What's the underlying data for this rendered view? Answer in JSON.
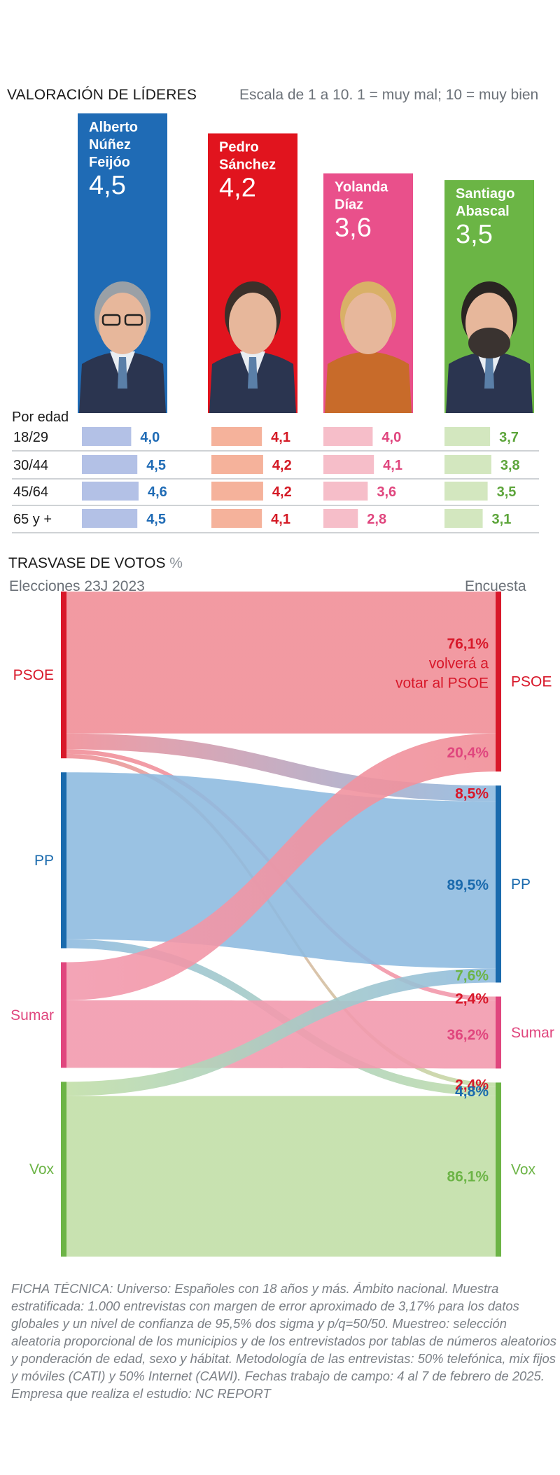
{
  "leaders_section": {
    "title": "VALORACIÓN DE LÍDERES",
    "scale_note": "Escala de 1 a 10. 1 = muy mal; 10 = muy bien",
    "age_label": "Por edad"
  },
  "transfer_section": {
    "title": "TRASVASE DE VOTOS",
    "unit": "%",
    "left_label": "Elecciones 23J 2023",
    "right_label": "Encuesta"
  },
  "ficha": "FICHA TÉCNICA: Universo: Españoles con 18 años y más. Ámbito nacional. Muestra estratificada: 1.000 entrevistas con margen de error aproximado de 3,17% para los datos globales y un nivel de confianza de 95,5% dos sigma y p/q=50/50. Muestreo: selección aleatoria proporcional de los municipios y de los entrevistados por tablas de números aleatorios y ponderación de edad, sexo y hábitat. Metodología de las entrevistas: 50% telefónica, mix fijos y móviles (CATI) y 50% Internet (CAWI). Fechas trabajo de campo: 4 al 7 de febrero de 2025. Empresa que realiza el estudio: NC REPORT",
  "chart_data": [
    {
      "type": "bar",
      "title": "VALORACIÓN DE LÍDERES",
      "subtitle": "Escala de 1 a 10. 1 = muy mal; 10 = muy bien",
      "categories": [
        "Alberto Núñez Feijóo",
        "Pedro Sánchez",
        "Yolanda Díaz",
        "Santiago Abascal"
      ],
      "name_lines": [
        [
          "Alberto",
          "Núñez",
          "Feijóo"
        ],
        [
          "Pedro",
          "Sánchez"
        ],
        [
          "Yolanda",
          "Díaz"
        ],
        [
          "Santiago",
          "Abascal"
        ]
      ],
      "values": [
        4.5,
        4.2,
        3.6,
        3.5
      ],
      "value_labels": [
        "4,5",
        "4,2",
        "3,6",
        "3,5"
      ],
      "colors": [
        "#1f6bb5",
        "#e1141e",
        "#e9508b",
        "#6bb545"
      ],
      "light_colors": [
        "#b3c1e6",
        "#f5b29b",
        "#f6bec9",
        "#d3e7bf"
      ],
      "text_colors": [
        "#1f6bb5",
        "#d41a25",
        "#e0467e",
        "#5da53b"
      ],
      "ylim": [
        0,
        10
      ]
    },
    {
      "type": "bar",
      "title": "Por edad",
      "age_groups": [
        "18/29",
        "30/44",
        "45/64",
        "65 y +"
      ],
      "series": [
        {
          "name": "Alberto Núñez Feijóo",
          "values": [
            4.0,
            4.5,
            4.6,
            4.5
          ],
          "labels": [
            "4,0",
            "4,5",
            "4,6",
            "4,5"
          ]
        },
        {
          "name": "Pedro Sánchez",
          "values": [
            4.1,
            4.2,
            4.2,
            4.1
          ],
          "labels": [
            "4,1",
            "4,2",
            "4,2",
            "4,1"
          ]
        },
        {
          "name": "Yolanda Díaz",
          "values": [
            4.0,
            4.1,
            3.6,
            2.8
          ],
          "labels": [
            "4,0",
            "4,1",
            "3,6",
            "2,8"
          ]
        },
        {
          "name": "Santiago Abascal",
          "values": [
            3.7,
            3.8,
            3.5,
            3.1
          ],
          "labels": [
            "3,7",
            "3,8",
            "3,5",
            "3,1"
          ]
        }
      ]
    },
    {
      "type": "sankey",
      "title": "TRASVASE DE VOTOS",
      "unit": "%",
      "left_nodes": [
        "PSOE",
        "PP",
        "Sumar",
        "Vox"
      ],
      "right_nodes": [
        "PSOE",
        "PP",
        "Sumar",
        "Vox"
      ],
      "node_colors": {
        "PSOE": "#d8182a",
        "PP": "#1a6aad",
        "Sumar": "#e0467e",
        "Vox": "#6cb446"
      },
      "flow_colors": {
        "PSOE": "#f08f98",
        "PP": "#8fbbe0",
        "Sumar": "#f29aae",
        "Vox": "#c2dfa8"
      },
      "flows": [
        {
          "from": "PSOE",
          "to": "PSOE",
          "value": 76.1,
          "label": "76,1%",
          "note": [
            "volverá a",
            "votar al PSOE"
          ]
        },
        {
          "from": "PSOE",
          "to": "PP",
          "value": 8.5,
          "label": "8,5%"
        },
        {
          "from": "PSOE",
          "to": "Sumar",
          "value": 2.4,
          "label": "2,4%"
        },
        {
          "from": "PSOE",
          "to": "Vox",
          "value": 2.4,
          "label": "2,4%"
        },
        {
          "from": "PP",
          "to": "PP",
          "value": 89.5,
          "label": "89,5%"
        },
        {
          "from": "PP",
          "to": "Vox",
          "value": 4.8,
          "label": "4,8%"
        },
        {
          "from": "Sumar",
          "to": "PSOE",
          "value": 20.4,
          "label": "20,4%"
        },
        {
          "from": "Sumar",
          "to": "Sumar",
          "value": 36.2,
          "label": "36,2%"
        },
        {
          "from": "Vox",
          "to": "PP",
          "value": 7.6,
          "label": "7,6%"
        },
        {
          "from": "Vox",
          "to": "Vox",
          "value": 86.1,
          "label": "86,1%"
        }
      ]
    }
  ]
}
